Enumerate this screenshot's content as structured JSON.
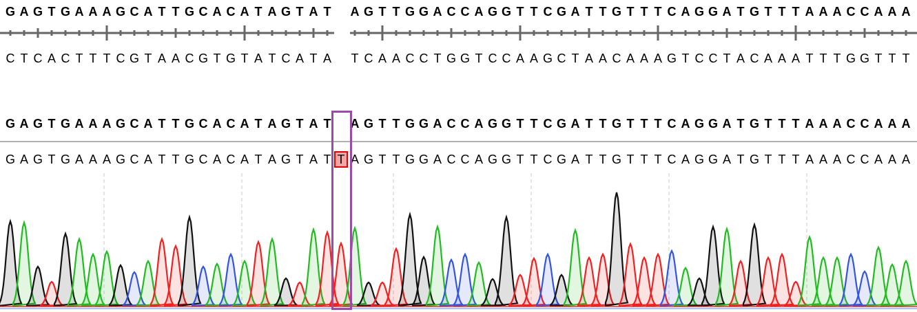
{
  "reference_track": {
    "forward": "GAGTGAAAGCATTGCACATAGTAT AGTTGGACCAGGTTCGATTGTTTCAGGATGTTTAAACCAAA",
    "complement": "CTCACTTTCGTAACGTGTATCATA TCAACCTGGTCCAAGCTAACAAAGTCCTACAAATTTGGTTT"
  },
  "alignment": {
    "reference": "GAGTGAAAGCATTGCACATAGTAT AGTTGGACCAGGTTCGATTGTTTCAGGATGTTTAAACCAAA",
    "sample": "GAGTGAAAGCATTGCACATAGTATTAGTTGGACCAGGTTCGATTGTTTCAGGATGTTTAAACCAAA",
    "highlighted_index": 24,
    "highlighted_base": "T",
    "mismatch_type": "insertion"
  },
  "chromatogram": {
    "base_colors": {
      "A": "#22bb22",
      "C": "#3355dd",
      "G": "#111111",
      "T": "#ee2222"
    },
    "relative_peak_heights": [
      123,
      121,
      57,
      35,
      105,
      97,
      75,
      79,
      59,
      49,
      65,
      97,
      87,
      129,
      57,
      61,
      75,
      65,
      93,
      97,
      40,
      34,
      111,
      107,
      91,
      113,
      34,
      34,
      83,
      133,
      71,
      115,
      67,
      75,
      63,
      39,
      129,
      45,
      69,
      75,
      45,
      110,
      70,
      75,
      165,
      90,
      70,
      75,
      80,
      55,
      40,
      115,
      112,
      65,
      118,
      70,
      75,
      35,
      100,
      70,
      70,
      75,
      50,
      85,
      60,
      65
    ]
  },
  "colors": {
    "selection": "#9b4aa8",
    "mismatch_fill": "#f4a6a6",
    "mismatch_border": "#e00000"
  }
}
